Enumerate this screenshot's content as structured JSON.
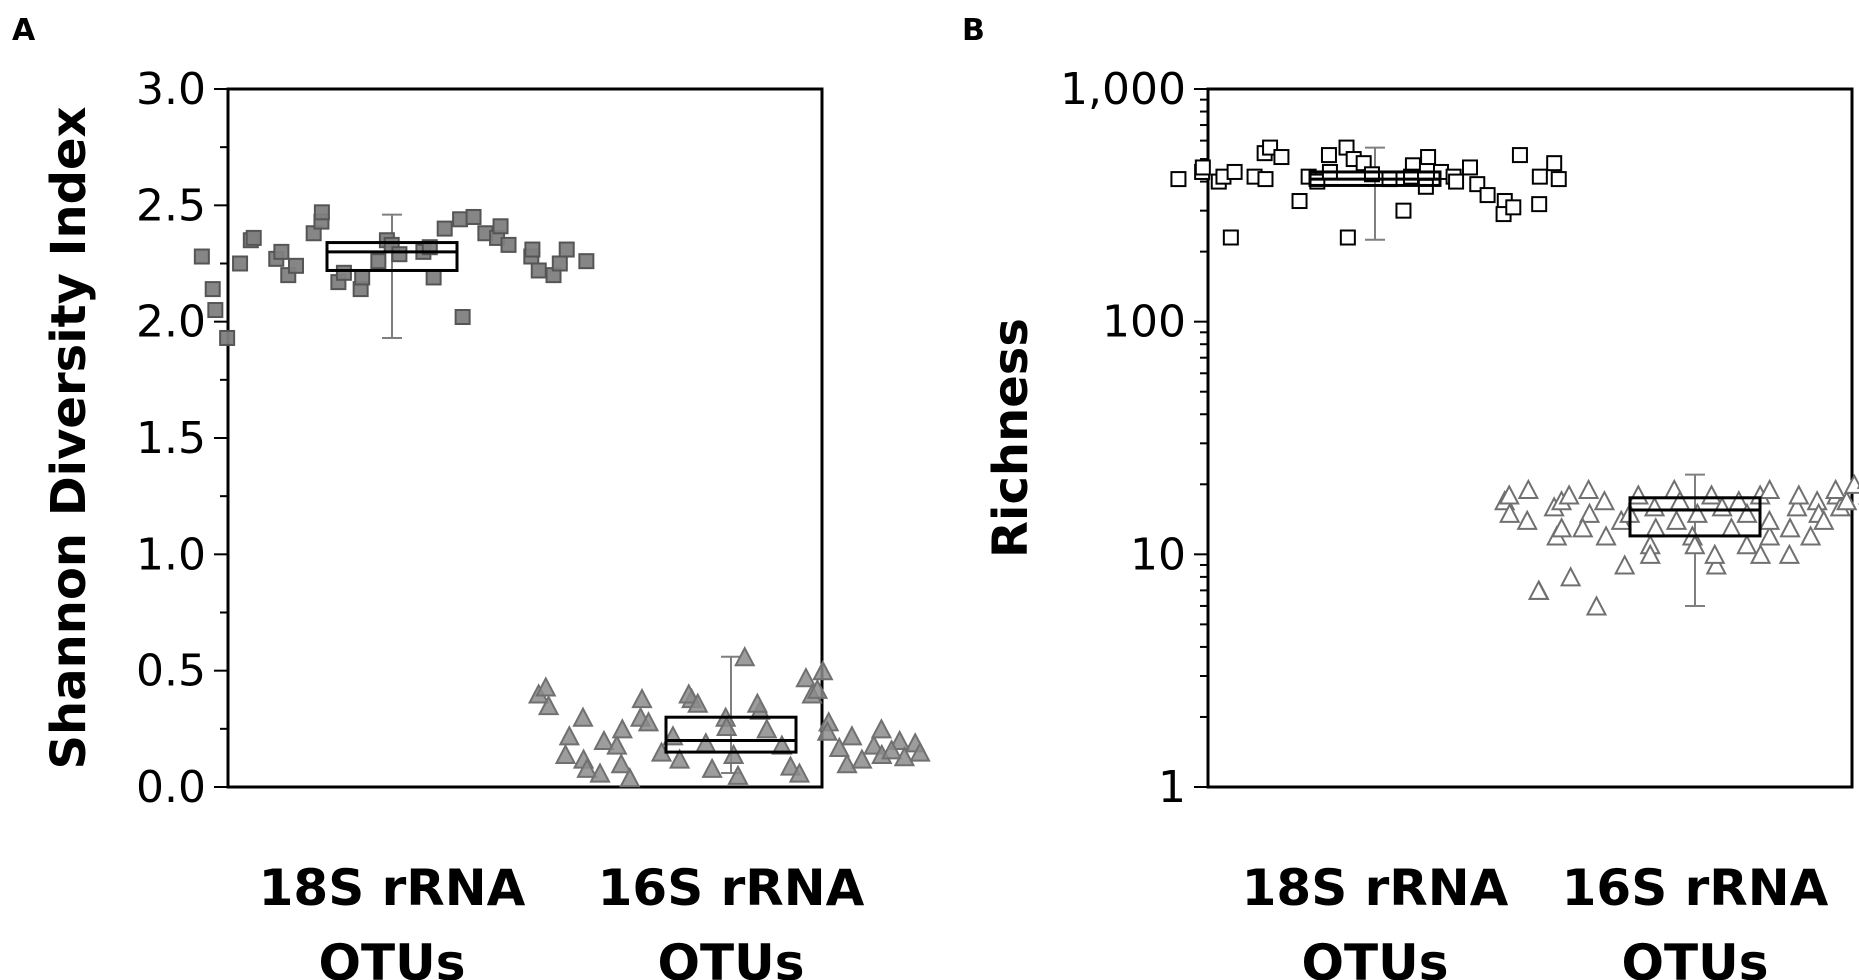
{
  "chart_data": [
    {
      "panel": "A",
      "type": "scatter",
      "ylabel": "Shannon Diversity Index",
      "ylim": [
        0,
        3.0
      ],
      "ytick_labels": [
        "0.0",
        "0.5",
        "1.0",
        "1.5",
        "2.0",
        "2.5",
        "3.0"
      ],
      "yscale": "linear",
      "categories": [
        [
          "18S rRNA",
          "OTUs"
        ],
        [
          "16S rRNA",
          "OTUs"
        ]
      ],
      "series": [
        {
          "category": 0,
          "marker": "square",
          "fill": "#808080",
          "edge": "#555555",
          "box": {
            "q1": 2.22,
            "median": 2.3,
            "q3": 2.34,
            "whisker_low": 1.93,
            "whisker_high": 2.46
          },
          "values": [
            2.28,
            2.14,
            2.05,
            1.93,
            2.25,
            2.35,
            2.36,
            2.27,
            2.3,
            2.2,
            2.24,
            2.38,
            2.43,
            2.47,
            2.17,
            2.21,
            2.14,
            2.19,
            2.26,
            2.35,
            2.33,
            2.29,
            2.3,
            2.19,
            2.32,
            2.4,
            2.02,
            2.44,
            2.45,
            2.38,
            2.36,
            2.41,
            2.33,
            2.28,
            2.31,
            2.22,
            2.2,
            2.25,
            2.31,
            2.26
          ]
        },
        {
          "category": 1,
          "marker": "triangle",
          "fill": "#8c8c8c",
          "edge": "#707070",
          "box": {
            "q1": 0.15,
            "median": 0.2,
            "q3": 0.3,
            "whisker_low": 0.06,
            "whisker_high": 0.56
          },
          "values": [
            0.4,
            0.43,
            0.35,
            0.22,
            0.14,
            0.3,
            0.12,
            0.08,
            0.06,
            0.2,
            0.18,
            0.25,
            0.1,
            0.04,
            0.3,
            0.38,
            0.28,
            0.15,
            0.22,
            0.12,
            0.38,
            0.4,
            0.36,
            0.19,
            0.08,
            0.3,
            0.26,
            0.14,
            0.05,
            0.56,
            0.33,
            0.36,
            0.25,
            0.18,
            0.09,
            0.06,
            0.47,
            0.4,
            0.42,
            0.5,
            0.28,
            0.24,
            0.17,
            0.1,
            0.22,
            0.12,
            0.18,
            0.14,
            0.25,
            0.2,
            0.16,
            0.13,
            0.19,
            0.15
          ]
        }
      ]
    },
    {
      "panel": "B",
      "type": "scatter",
      "ylabel": "Richness",
      "yscale": "log",
      "ylim": [
        1,
        1000
      ],
      "ytick_labels": [
        "1",
        "10",
        "100",
        "1,000"
      ],
      "categories": [
        [
          "18S rRNA",
          "OTUs"
        ],
        [
          "16S rRNA",
          "OTUs"
        ]
      ],
      "series": [
        {
          "category": 0,
          "marker": "square-open",
          "fill": "#ffffff",
          "edge": "#000000",
          "box": {
            "q1": 385,
            "median": 410,
            "q3": 440,
            "whisker_low": 225,
            "whisker_high": 560
          },
          "values": [
            410,
            440,
            460,
            400,
            420,
            230,
            440,
            420,
            410,
            530,
            560,
            510,
            330,
            420,
            400,
            440,
            520,
            230,
            560,
            500,
            480,
            430,
            410,
            300,
            470,
            420,
            380,
            510,
            440,
            420,
            400,
            460,
            390,
            350,
            330,
            290,
            310,
            520,
            320,
            420,
            480,
            410
          ]
        },
        {
          "category": 1,
          "marker": "triangle-open",
          "fill": "#ffffff",
          "edge": "#707070",
          "box": {
            "q1": 12,
            "median": 15.5,
            "q3": 17.5,
            "whisker_low": 6,
            "whisker_high": 22
          },
          "values": [
            17,
            15,
            18,
            14,
            19,
            7,
            7,
            16,
            12,
            17,
            13,
            18,
            8,
            15,
            13,
            19,
            6,
            17,
            12,
            14,
            9,
            15,
            18,
            11,
            10,
            16,
            13,
            19,
            14,
            17,
            12,
            11,
            15,
            18,
            9,
            10,
            16,
            13,
            17,
            11,
            15,
            18,
            10,
            12,
            14,
            19,
            13,
            10,
            16,
            18,
            12,
            17,
            15,
            14,
            18,
            16,
            19,
            17,
            20,
            18,
            19,
            21,
            17,
            18
          ]
        }
      ]
    }
  ]
}
